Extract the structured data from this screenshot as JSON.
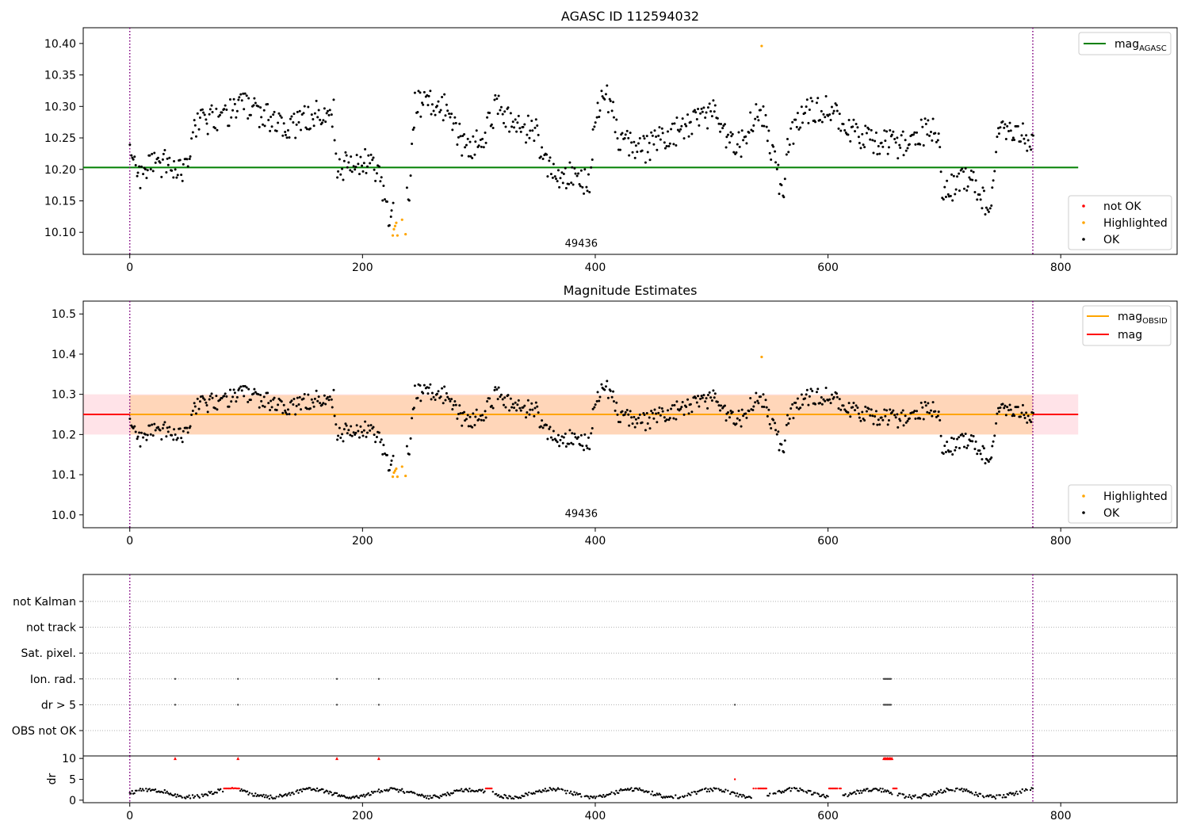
{
  "chart_data": [
    {
      "type": "scatter",
      "title": "AGASC ID 112594032",
      "xlim": [
        -40,
        900
      ],
      "ylim": [
        10.065,
        10.425
      ],
      "xticks": [
        0,
        200,
        400,
        600,
        800
      ],
      "yticks": [
        10.1,
        10.15,
        10.2,
        10.25,
        10.3,
        10.35,
        10.4
      ],
      "ytick_labels": [
        "10.10",
        "10.15",
        "10.20",
        "10.25",
        "10.30",
        "10.35",
        "10.40"
      ],
      "obsid_annotation": {
        "text": "49436",
        "x": 388,
        "y": 10.077
      },
      "vlines": [
        0,
        776
      ],
      "hline": {
        "name": "mag_AGASC",
        "y": 10.203,
        "x_range": [
          -40,
          815
        ],
        "color": "#008000"
      },
      "highlighted_points": [
        [
          226,
          10.095
        ],
        [
          227,
          10.105
        ],
        [
          228,
          10.11
        ],
        [
          229,
          10.115
        ],
        [
          230,
          10.095
        ],
        [
          234,
          10.12
        ],
        [
          237,
          10.097
        ],
        [
          543,
          10.396
        ]
      ],
      "legend_top": {
        "entries": [
          {
            "label": "mag",
            "subscript": "AGASC",
            "color": "#008000",
            "kind": "line"
          }
        ]
      },
      "legend_bottom": {
        "entries": [
          {
            "label": "not OK",
            "color": "#ff0000",
            "kind": "dot"
          },
          {
            "label": "Highlighted",
            "color": "#ffa500",
            "kind": "dot"
          },
          {
            "label": "OK",
            "color": "#000000",
            "kind": "dot"
          }
        ]
      }
    },
    {
      "type": "scatter",
      "title": "Magnitude Estimates",
      "xlim": [
        -40,
        900
      ],
      "ylim": [
        9.968,
        10.532
      ],
      "xticks": [
        0,
        200,
        400,
        600,
        800
      ],
      "yticks": [
        10.0,
        10.1,
        10.2,
        10.3,
        10.4,
        10.5
      ],
      "ytick_labels": [
        "10.0",
        "10.1",
        "10.2",
        "10.3",
        "10.4",
        "10.5"
      ],
      "obsid_annotation": {
        "text": "49436",
        "x": 388,
        "y": 9.995
      },
      "vlines": [
        0,
        776
      ],
      "mag_band": {
        "y_range": [
          10.2,
          10.3
        ],
        "x_range": [
          -40,
          815
        ],
        "color": "#ffc0cb"
      },
      "obsid_band": {
        "y_range": [
          10.2,
          10.298
        ],
        "x_range": [
          0,
          776
        ],
        "color": "#ffa500"
      },
      "mag_line": {
        "y": 10.25,
        "x_range": [
          -40,
          815
        ],
        "color": "#ff0000"
      },
      "mag_obsid_line": {
        "y": 10.25,
        "x_range": [
          0,
          776
        ],
        "color": "#ffa500"
      },
      "highlighted_points": [
        [
          226,
          10.095
        ],
        [
          227,
          10.105
        ],
        [
          228,
          10.11
        ],
        [
          229,
          10.115
        ],
        [
          230,
          10.095
        ],
        [
          234,
          10.12
        ],
        [
          237,
          10.097
        ],
        [
          543,
          10.393
        ]
      ],
      "legend_top": {
        "entries": [
          {
            "label": "mag",
            "subscript": "OBSID",
            "color": "#ffa500",
            "kind": "line"
          },
          {
            "label": "mag",
            "subscript": "",
            "color": "#ff0000",
            "kind": "line"
          }
        ]
      },
      "legend_bottom": {
        "entries": [
          {
            "label": "Highlighted",
            "color": "#ffa500",
            "kind": "dot"
          },
          {
            "label": "OK",
            "color": "#000000",
            "kind": "dot"
          }
        ]
      }
    },
    {
      "type": "scatter",
      "title": "",
      "xlim": [
        -40,
        900
      ],
      "flag_rows": [
        "not Kalman",
        "not track",
        "Sat. pixel.",
        "Ion. rad.",
        "dr > 5",
        "OBS not OK"
      ],
      "flag_points": {
        "Ion. rad.": [
          39,
          93,
          178,
          214,
          648,
          649,
          650,
          651,
          652,
          653,
          654
        ],
        "dr > 5": [
          39,
          93,
          178,
          214,
          520,
          648,
          649,
          650,
          651,
          652,
          653,
          654
        ]
      }
    },
    {
      "type": "scatter",
      "ylabel": "dr",
      "xlim": [
        -40,
        900
      ],
      "ylim": [
        -0.6,
        10.6
      ],
      "xticks": [
        0,
        200,
        400,
        600,
        800
      ],
      "yticks": [
        0,
        5,
        10
      ],
      "ytick_labels": [
        "0",
        "5",
        "10"
      ],
      "dr_threshold": 5,
      "dr_clip": 10
    }
  ]
}
